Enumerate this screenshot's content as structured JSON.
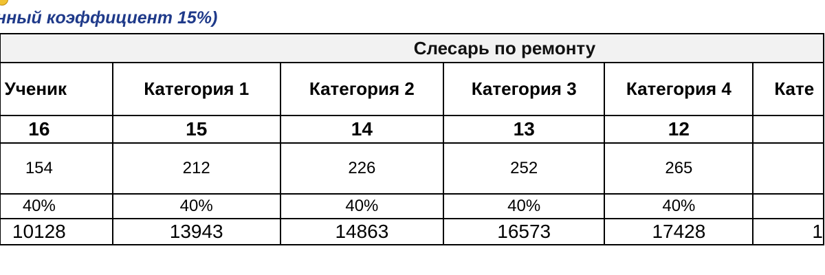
{
  "header": {
    "subtitle": "нный коэффициент 15%)"
  },
  "table": {
    "group_title": "Слесарь по ремонту",
    "columns": [
      {
        "category": "Ученик",
        "code": "16",
        "value": "154",
        "percent": "40%",
        "salary": "10128"
      },
      {
        "category": "Категория 1",
        "code": "15",
        "value": "212",
        "percent": "40%",
        "salary": "13943"
      },
      {
        "category": "Категория 2",
        "code": "14",
        "value": "226",
        "percent": "40%",
        "salary": "14863"
      },
      {
        "category": "Категория 3",
        "code": "13",
        "value": "252",
        "percent": "40%",
        "salary": "16573"
      },
      {
        "category": "Категория 4",
        "code": "12",
        "value": "265",
        "percent": "40%",
        "salary": "17428"
      },
      {
        "category": "Кате",
        "code": "",
        "value": "",
        "percent": "",
        "salary": "1"
      }
    ]
  }
}
